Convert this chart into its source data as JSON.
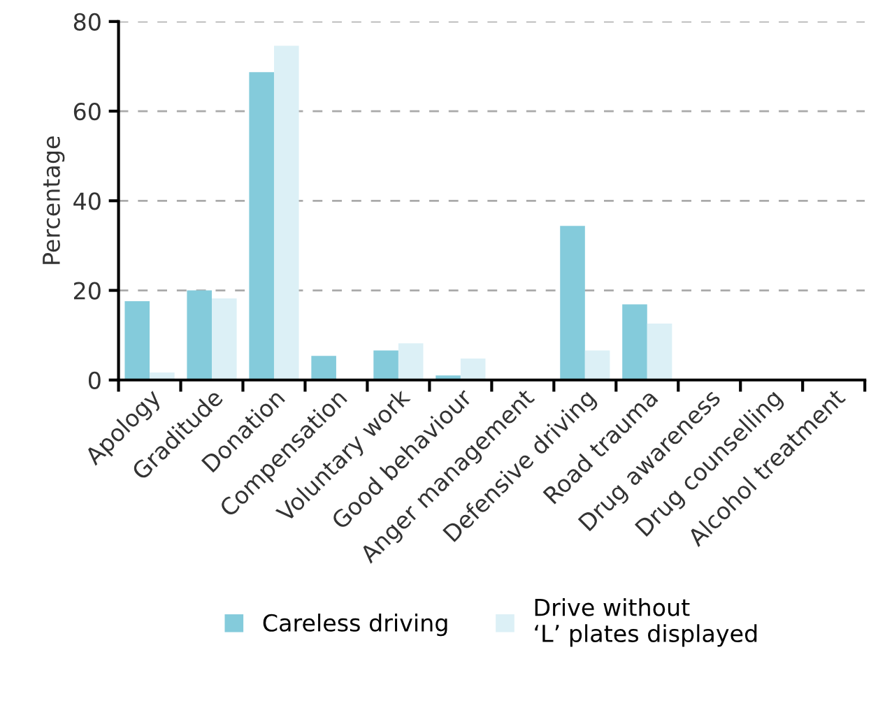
{
  "chart_data": {
    "type": "bar",
    "ylabel": "Percentage",
    "categories": [
      "Apology",
      "Graditude",
      "Donation",
      "Compensation",
      "Voluntary work",
      "Good behaviour",
      "Anger management",
      "Defensive driving",
      "Road trauma",
      "Drug awareness",
      "Drug counselling",
      "Alcohol treatment"
    ],
    "series": [
      {
        "name": "Careless driving",
        "color": "#84cbdb",
        "values": [
          17.6,
          20.0,
          68.7,
          5.4,
          6.6,
          1.0,
          0,
          34.4,
          16.9,
          0,
          0,
          0
        ]
      },
      {
        "name": "Drive without\n‘L’ plates displayed",
        "color": "#dcf0f6",
        "values": [
          1.7,
          18.2,
          74.6,
          0,
          8.2,
          4.8,
          0,
          6.6,
          12.6,
          0,
          0,
          0
        ]
      }
    ],
    "ylim": [
      0,
      80
    ],
    "yticks": [
      0,
      20,
      40,
      60,
      80
    ],
    "grid": "y",
    "legend": "bottom"
  }
}
